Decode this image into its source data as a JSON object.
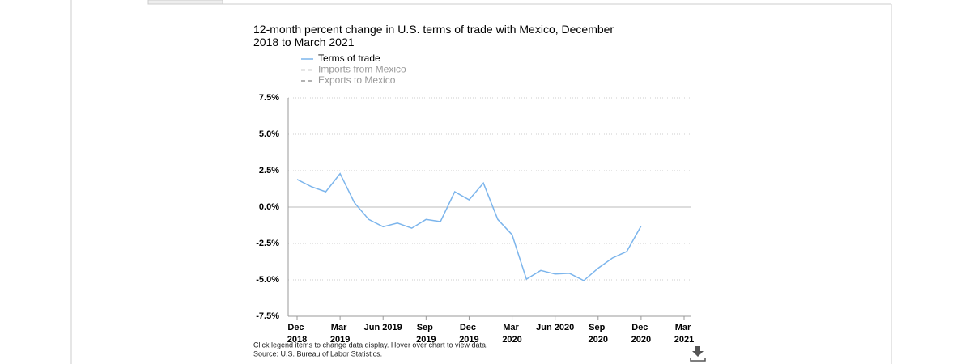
{
  "chart_data": {
    "type": "line",
    "title": "12-month percent change in U.S. terms of trade with Mexico, December 2018 to March 2021",
    "categories": [
      "Dec 2018",
      null,
      null,
      "Mar 2019",
      null,
      null,
      "Jun 2019",
      null,
      null,
      "Sep 2019",
      null,
      null,
      "Dec 2019",
      null,
      null,
      "Mar 2020",
      null,
      null,
      "Jun 2020",
      null,
      null,
      "Sep 2020",
      null,
      null,
      "Dec 2020",
      null,
      null,
      "Mar 2021"
    ],
    "series": [
      {
        "name": "Terms of trade",
        "color": "#7cb5ec",
        "values": [
          1.9,
          1.4,
          1.05,
          2.3,
          0.3,
          -0.85,
          -1.35,
          -1.1,
          -1.45,
          -0.85,
          -1.0,
          1.05,
          0.5,
          1.65,
          -0.85,
          -1.9,
          -4.95,
          -4.35,
          -4.6,
          -4.55,
          -5.05,
          -4.2,
          -3.5,
          -3.05,
          -1.3,
          null,
          null,
          null
        ]
      },
      {
        "name": "Imports from Mexico",
        "color": "#999999",
        "hidden": true
      },
      {
        "name": "Exports to Mexico",
        "color": "#999999",
        "hidden": true
      }
    ],
    "ylim": [
      -7.5,
      7.5
    ],
    "yticks": [
      {
        "value": -7.5,
        "label": "-7.5%"
      },
      {
        "value": -5,
        "label": "-5.0%"
      },
      {
        "value": -2.5,
        "label": "-2.5%"
      },
      {
        "value": 0,
        "label": "0.0%"
      },
      {
        "value": 2.5,
        "label": "2.5%"
      },
      {
        "value": 5,
        "label": "5.0%"
      },
      {
        "value": 7.5,
        "label": "7.5%"
      }
    ],
    "grid": true,
    "note": "Click legend items to change data display. Hover over chart to view data.",
    "source": "Source: U.S. Bureau of Labor Statistics."
  }
}
